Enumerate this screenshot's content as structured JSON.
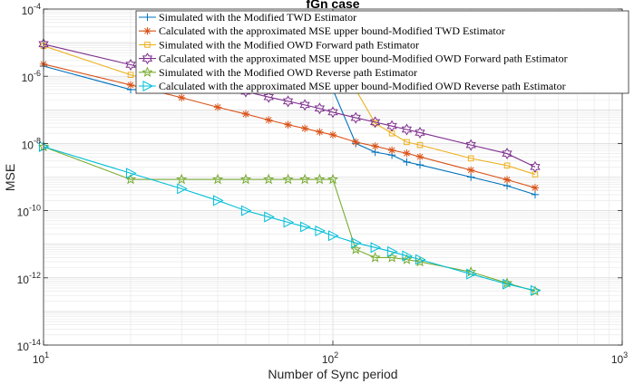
{
  "chart_data": {
    "type": "line",
    "title": "fGn case",
    "xlabel": "Number of Sync period",
    "ylabel": "MSE",
    "xscale": "log",
    "yscale": "log",
    "xlim": [
      10,
      1000
    ],
    "ylim": [
      1e-14,
      0.0001
    ],
    "grid": true,
    "legend_position": "top-right",
    "x_ticks": [
      {
        "value": 10,
        "base": "10",
        "exp": "1"
      },
      {
        "value": 100,
        "base": "10",
        "exp": "2"
      },
      {
        "value": 1000,
        "base": "10",
        "exp": "3"
      }
    ],
    "y_ticks": [
      {
        "value": 1e-14,
        "base": "10",
        "exp": "-14"
      },
      {
        "value": 1e-12,
        "base": "10",
        "exp": "-12"
      },
      {
        "value": 1e-10,
        "base": "10",
        "exp": "-10"
      },
      {
        "value": 1e-08,
        "base": "10",
        "exp": "-8"
      },
      {
        "value": 1e-06,
        "base": "10",
        "exp": "-6"
      },
      {
        "value": 0.0001,
        "base": "10",
        "exp": "-4"
      }
    ],
    "series": [
      {
        "name": "Simulated with the Modified TWD Estimator",
        "color": "#0072BD",
        "marker": "plus",
        "x": [
          10,
          20,
          30,
          40,
          50,
          60,
          70,
          80,
          90,
          100,
          120,
          140,
          160,
          180,
          200,
          300,
          400,
          500
        ],
        "y": [
          2e-06,
          4e-07,
          4e-07,
          4e-07,
          4e-07,
          4e-07,
          4e-07,
          4e-07,
          4e-07,
          4e-07,
          1e-08,
          5.5e-09,
          4.5e-09,
          2.8e-09,
          2.3e-09,
          1e-09,
          5.5e-10,
          3e-10
        ]
      },
      {
        "name": "Calculated with the approximated MSE upper bound-Modified TWD Estimator",
        "color": "#D95319",
        "marker": "asterisk",
        "x": [
          10,
          20,
          30,
          40,
          50,
          60,
          70,
          80,
          90,
          100,
          120,
          140,
          160,
          180,
          200,
          300,
          400,
          500
        ],
        "y": [
          2.3e-06,
          5.5e-07,
          2.3e-07,
          1.2e-07,
          7.5e-08,
          5e-08,
          3.6e-08,
          2.8e-08,
          2.2e-08,
          1.8e-08,
          1.1e-08,
          8.3e-09,
          6.3e-09,
          5.1e-09,
          4e-09,
          1.6e-09,
          8.3e-10,
          4.8e-10
        ]
      },
      {
        "name": "Simulated with the Modified OWD Forward path Estimator",
        "color": "#EDB120",
        "marker": "square",
        "x": [
          10,
          20,
          30,
          40,
          50,
          60,
          70,
          80,
          90,
          100,
          120,
          140,
          160,
          180,
          200,
          300,
          400,
          500
        ],
        "y": [
          8e-06,
          1.1e-06,
          4e-07,
          4e-07,
          4e-07,
          4e-07,
          4e-07,
          4e-07,
          4e-07,
          4e-07,
          4e-07,
          4e-08,
          2e-08,
          1.1e-08,
          9e-09,
          3.6e-09,
          2.2e-09,
          1.2e-09
        ]
      },
      {
        "name": "Calculated with the approximated MSE upper bound-Modified OWD Forward path Estimator",
        "color": "#7E2F8E",
        "marker": "hexagram",
        "x": [
          10,
          20,
          30,
          40,
          50,
          60,
          70,
          80,
          90,
          100,
          120,
          140,
          160,
          180,
          200,
          300,
          400,
          500
        ],
        "y": [
          9e-06,
          2.2e-06,
          9.5e-07,
          5.5e-07,
          3.5e-07,
          2.4e-07,
          1.8e-07,
          1.4e-07,
          1.1e-07,
          8.5e-08,
          5.8e-08,
          4.3e-08,
          3.3e-08,
          2.6e-08,
          2.1e-08,
          9e-09,
          5e-09,
          2e-09
        ]
      },
      {
        "name": "Simulated with the Modified OWD Reverse path Estimator",
        "color": "#77AC30",
        "marker": "pentagram",
        "x": [
          10,
          20,
          30,
          40,
          50,
          60,
          70,
          80,
          90,
          100,
          120,
          140,
          160,
          180,
          200,
          300,
          400,
          500
        ],
        "y": [
          8e-09,
          8.5e-10,
          8.5e-10,
          8.5e-10,
          8.5e-10,
          8.5e-10,
          8.5e-10,
          8.5e-10,
          8.5e-10,
          8.5e-10,
          7e-12,
          4e-12,
          4e-12,
          3.5e-12,
          3e-12,
          1.5e-12,
          7e-13,
          4e-13
        ]
      },
      {
        "name": "Calculated with the approximated MSE upper bound-Modified OWD Reverse path Estimator",
        "color": "#00BFD8",
        "marker": "triangle-right",
        "x": [
          10,
          20,
          30,
          40,
          50,
          60,
          70,
          80,
          90,
          100,
          120,
          140,
          160,
          180,
          200,
          300,
          400,
          500
        ],
        "y": [
          8e-09,
          1.3e-09,
          4.5e-10,
          2e-10,
          1e-10,
          6.5e-11,
          4.5e-11,
          3.3e-11,
          2.5e-11,
          1.8e-11,
          1.1e-11,
          8e-12,
          6e-12,
          4.5e-12,
          3.5e-12,
          1.3e-12,
          6.5e-13,
          4.2e-13
        ]
      }
    ]
  }
}
